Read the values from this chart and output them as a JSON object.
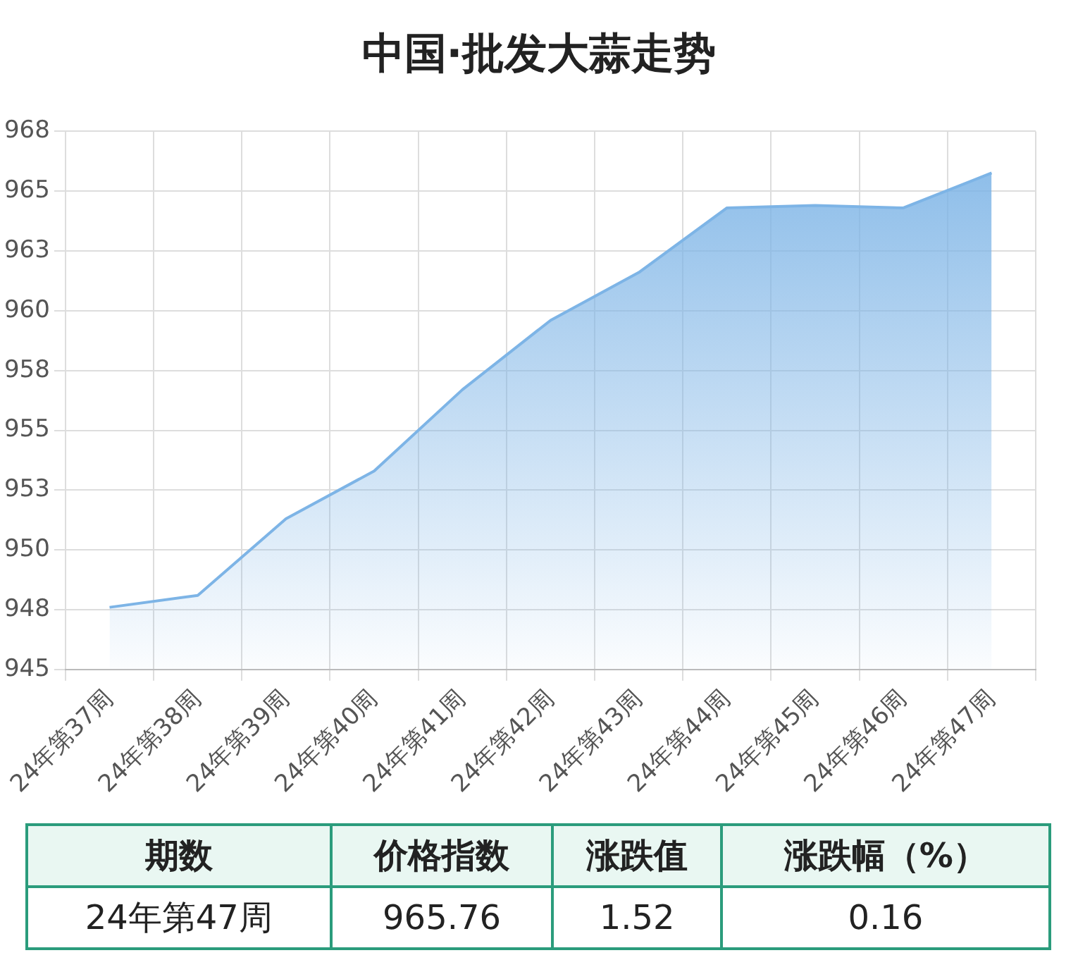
{
  "chart_data": {
    "type": "area",
    "title": "中国·批发大蒜走势",
    "categories": [
      "24年第37周",
      "24年第38周",
      "24年第39周",
      "24年第40周",
      "24年第41周",
      "24年第42周",
      "24年第43周",
      "24年第44周",
      "24年第45周",
      "24年第46周",
      "24年第47周"
    ],
    "series": [
      {
        "color": "#7db4e6",
        "values": [
          947.6,
          948.1,
          951.3,
          953.3,
          956.7,
          959.6,
          961.6,
          964.3,
          964.4,
          964.3,
          965.76
        ]
      }
    ],
    "ylim": [
      945,
      967.5
    ],
    "yticks": [
      945,
      {
        "value": 947.5,
        "label": "948"
      },
      950,
      {
        "value": 952.5,
        "label": "953"
      },
      955,
      {
        "value": 957.5,
        "label": "958"
      },
      960,
      {
        "value": 962.5,
        "label": "963"
      },
      965,
      {
        "value": 967.5,
        "label": "968"
      }
    ],
    "grid": true,
    "legend": false,
    "marker": "none",
    "annotations": [
      "期数",
      "价格指数",
      "涨跌值",
      "涨跌幅（%）",
      "24年第47周",
      "965.76",
      "1.52",
      "0.16"
    ]
  }
}
